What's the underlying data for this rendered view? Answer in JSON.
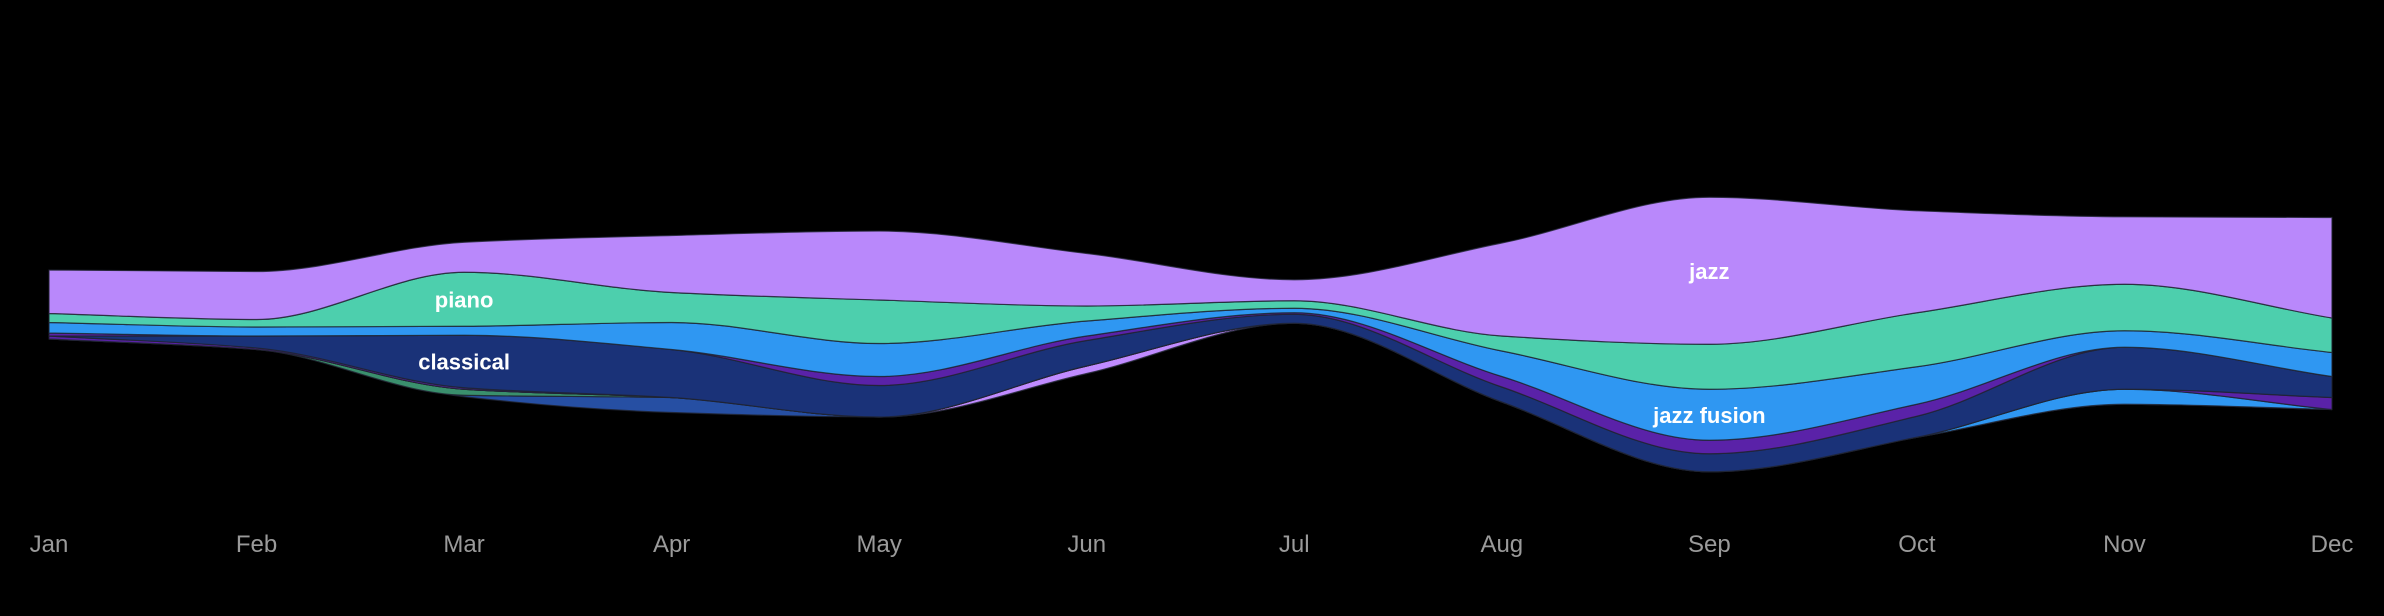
{
  "chart_data": {
    "type": "area",
    "subtype": "streamgraph",
    "categories": [
      "Jan",
      "Feb",
      "Mar",
      "Apr",
      "May",
      "Jun",
      "Jul",
      "Aug",
      "Sep",
      "Oct",
      "Nov",
      "Dec"
    ],
    "center_offset": [
      -3,
      -7,
      -13,
      -16,
      -16,
      -9,
      -1,
      -15,
      -23,
      -16,
      -7,
      -9
    ],
    "series": [
      {
        "key": "s1",
        "color": "#264fa3",
        "values": [
          0,
          0,
          1,
          10,
          0,
          0,
          0,
          0,
          0,
          0,
          0,
          0
        ]
      },
      {
        "key": "s2",
        "color": "#3a8f6d",
        "values": [
          0,
          0,
          4,
          0,
          0,
          0,
          0,
          0,
          0,
          0,
          0,
          0
        ]
      },
      {
        "key": "s3",
        "color": "#c08bff",
        "values": [
          0,
          0,
          0,
          0,
          0,
          5,
          0,
          0,
          0,
          0,
          0,
          0
        ]
      },
      {
        "key": "s4",
        "color": "#2f97f2",
        "values": [
          0,
          0,
          0,
          0,
          0,
          0,
          0,
          0,
          0,
          0,
          10,
          0
        ]
      },
      {
        "key": "s5",
        "color": "#5a22a8",
        "values": [
          2,
          1,
          1,
          0,
          0,
          0,
          0,
          0,
          0,
          0,
          0,
          8
        ]
      },
      {
        "key": "classical",
        "label": "classical",
        "color": "#1a3278",
        "values": [
          0,
          8,
          35,
          32,
          21,
          17,
          6,
          10,
          12,
          14,
          28,
          14
        ]
      },
      {
        "key": "s7",
        "color": "#5a22a8",
        "values": [
          2,
          0,
          0,
          0,
          6,
          3,
          1,
          7,
          9,
          8,
          0,
          0
        ]
      },
      {
        "key": "jazz_fusion",
        "label": "jazz fusion",
        "color": "#2f97f2",
        "values": [
          7,
          6,
          6,
          18,
          22,
          10,
          3,
          17,
          34,
          25,
          11,
          16
        ]
      },
      {
        "key": "piano",
        "label": "piano",
        "color": "#4dcfad",
        "values": [
          6,
          5,
          36,
          20,
          29,
          10,
          5,
          10,
          30,
          36,
          31,
          23
        ]
      },
      {
        "key": "jazz",
        "label": "jazz",
        "color": "#b988fb",
        "values": [
          29,
          32,
          20,
          38,
          46,
          35,
          14,
          62,
          98,
          68,
          45,
          67
        ]
      }
    ],
    "grid": false,
    "legend": "none"
  }
}
